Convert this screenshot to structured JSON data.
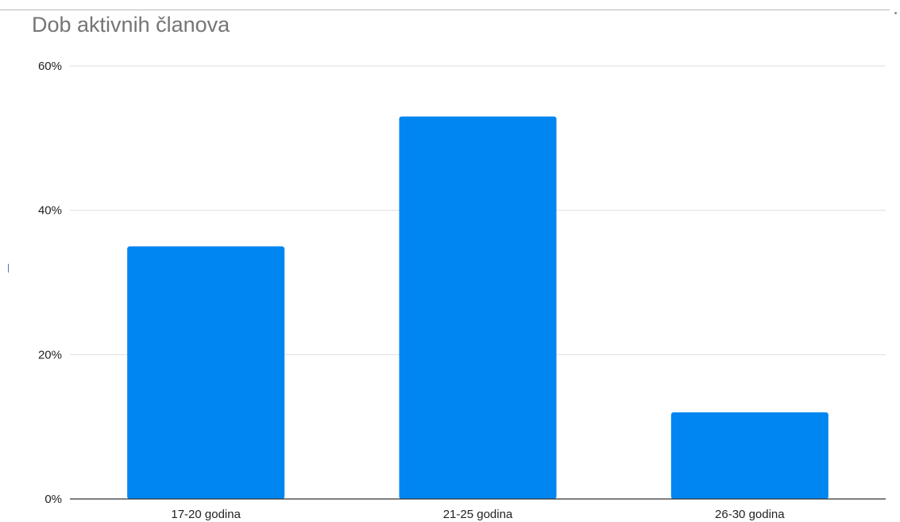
{
  "colors": {
    "bar": "#0086f1",
    "grid": "#dddddd",
    "axis": "#333333",
    "title": "#757575",
    "tick_text": "#222222"
  },
  "chart_data": {
    "type": "bar",
    "title": "Dob aktivnih članova",
    "xlabel": "",
    "ylabel": "",
    "categories": [
      "17-20 godina",
      "21-25 godina",
      "26-30 godina"
    ],
    "series": [
      {
        "values": [
          35,
          53,
          12
        ]
      }
    ],
    "ylim": [
      0,
      60
    ],
    "y_ticks": [
      0,
      20,
      40,
      60
    ],
    "y_tick_labels": [
      "0%",
      "20%",
      "40%",
      "60%"
    ],
    "grid": true,
    "legend": "none"
  }
}
